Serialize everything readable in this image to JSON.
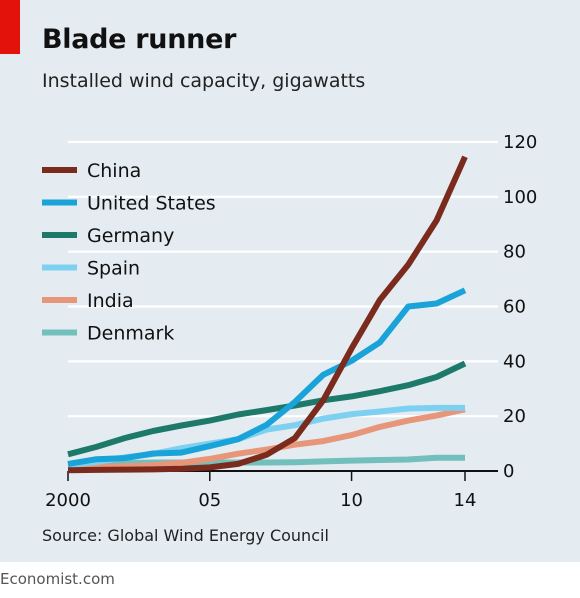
{
  "chart_data": {
    "type": "line",
    "title": "Blade runner",
    "subtitle": "Installed wind capacity, gigawatts",
    "source": "Source: Global Wind Energy Council",
    "x": [
      2000,
      2001,
      2002,
      2003,
      2004,
      2005,
      2006,
      2007,
      2008,
      2009,
      2010,
      2011,
      2012,
      2013,
      2014
    ],
    "x_tick_values": [
      2000,
      2005,
      2010,
      2014
    ],
    "x_tick_labels": [
      "2000",
      "05",
      "10",
      "14"
    ],
    "ylim": [
      0,
      120
    ],
    "y_ticks": [
      0,
      20,
      40,
      60,
      80,
      100,
      120
    ],
    "y_tick_labels": [
      "0",
      "20",
      "40",
      "60",
      "80",
      "100",
      "120"
    ],
    "grid": "horizontal",
    "legend_position": "top-left",
    "series": [
      {
        "name": "China",
        "color": "#7a2b1d",
        "values": [
          0.3,
          0.4,
          0.5,
          0.6,
          0.8,
          1.3,
          2.6,
          5.9,
          12.0,
          25.8,
          44.7,
          62.4,
          75.3,
          91.4,
          114.6
        ]
      },
      {
        "name": "United States",
        "color": "#1aa3d8",
        "values": [
          2.6,
          4.3,
          4.7,
          6.4,
          6.7,
          9.1,
          11.6,
          16.8,
          25.2,
          35.1,
          40.2,
          46.9,
          60.0,
          61.1,
          65.9
        ]
      },
      {
        "name": "Germany",
        "color": "#1d7a6b",
        "values": [
          6.1,
          8.8,
          12.0,
          14.6,
          16.6,
          18.4,
          20.6,
          22.2,
          23.9,
          25.8,
          27.2,
          29.1,
          31.3,
          34.3,
          39.2
        ]
      },
      {
        "name": "Spain",
        "color": "#7ed0f0",
        "values": [
          2.2,
          3.3,
          5.0,
          6.2,
          8.3,
          10.0,
          11.6,
          15.1,
          16.7,
          19.1,
          20.7,
          21.7,
          22.8,
          23.0,
          23.0
        ]
      },
      {
        "name": "India",
        "color": "#e8967a",
        "values": [
          1.2,
          1.5,
          1.7,
          2.1,
          3.0,
          4.4,
          6.3,
          7.8,
          9.6,
          10.9,
          13.1,
          16.1,
          18.4,
          20.2,
          22.5
        ]
      },
      {
        "name": "Denmark",
        "color": "#72bfbc",
        "values": [
          2.4,
          2.5,
          2.9,
          3.1,
          3.1,
          3.1,
          3.1,
          3.1,
          3.2,
          3.5,
          3.8,
          4.0,
          4.2,
          4.8,
          4.8
        ]
      }
    ]
  },
  "footer": {
    "text": "Economist.com"
  }
}
